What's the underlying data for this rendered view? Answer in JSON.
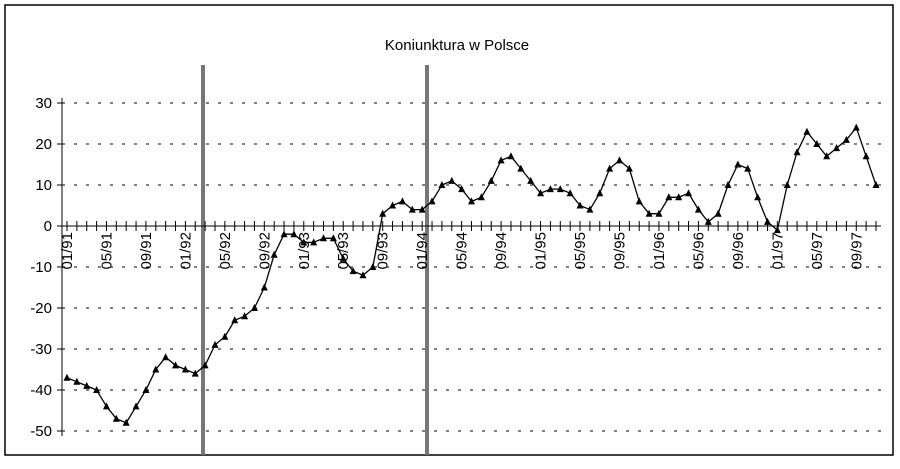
{
  "chart_data": {
    "type": "line",
    "title": "Koniunktura w Polsce",
    "categories": [
      "01/91",
      null,
      null,
      null,
      "05/91",
      null,
      null,
      null,
      "09/91",
      null,
      null,
      null,
      "01/92",
      null,
      null,
      null,
      "05/92",
      null,
      null,
      null,
      "09/92",
      null,
      null,
      null,
      "01/93",
      null,
      null,
      null,
      "05/93",
      null,
      null,
      null,
      "09/93",
      null,
      null,
      null,
      "01/94",
      null,
      null,
      null,
      "05/94",
      null,
      null,
      null,
      "09/94",
      null,
      null,
      null,
      "01/95",
      null,
      null,
      null,
      "05/95",
      null,
      null,
      null,
      "09/95",
      null,
      null,
      null,
      "01/96",
      null,
      null,
      null,
      "05/96",
      null,
      null,
      null,
      "09/96",
      null,
      null,
      null,
      "01/97",
      null,
      null,
      null,
      "05/97",
      null,
      null,
      null,
      "09/97",
      null,
      null
    ],
    "values": [
      -37,
      -38,
      -39,
      -40,
      -44,
      -47,
      -48,
      -44,
      -40,
      -35,
      -32,
      -34,
      -35,
      -36,
      -34,
      -29,
      -27,
      -23,
      -22,
      -20,
      -15,
      -7,
      -2,
      -2,
      -4,
      -4,
      -3,
      -3,
      -8,
      -11,
      -12,
      -10,
      3,
      5,
      6,
      4,
      4,
      6,
      10,
      11,
      9,
      6,
      7,
      11,
      16,
      17,
      14,
      11,
      8,
      9,
      9,
      8,
      5,
      4,
      8,
      14,
      16,
      14,
      6,
      3,
      3,
      7,
      7,
      8,
      4,
      1,
      3,
      10,
      15,
      14,
      7,
      1,
      -1,
      10,
      18,
      23,
      20,
      17,
      19,
      21,
      24,
      17,
      10
    ],
    "color": "#000000",
    "ylim": [
      -50,
      30
    ],
    "yticks": [
      -50,
      -40,
      -30,
      -20,
      -10,
      0,
      10,
      20,
      30
    ],
    "grid": true
  }
}
